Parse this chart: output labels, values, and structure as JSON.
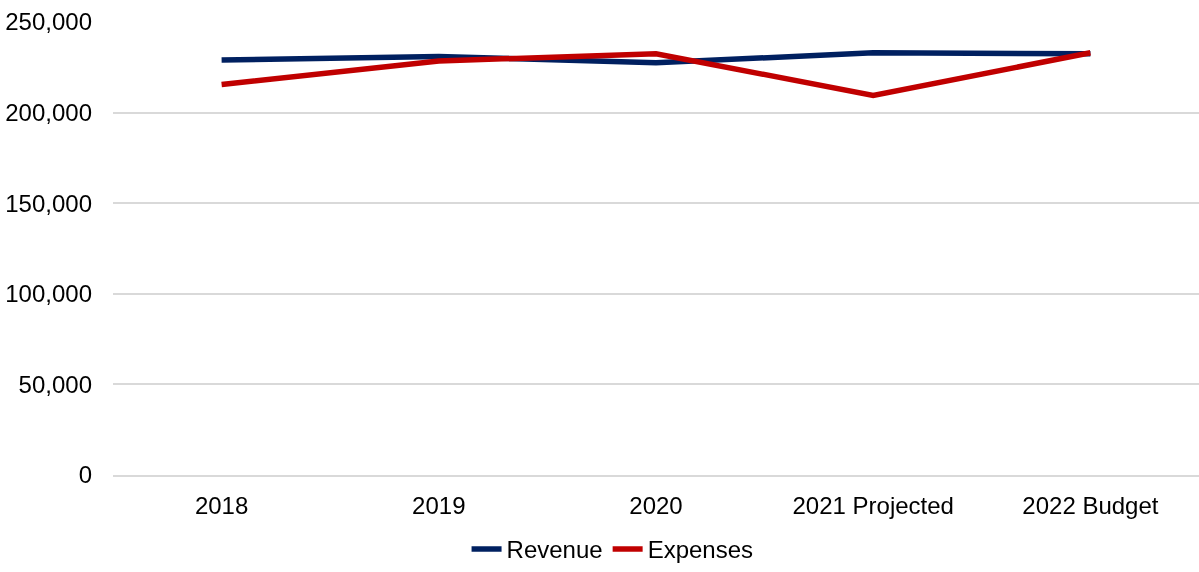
{
  "chart_data": {
    "type": "line",
    "categories": [
      "2018",
      "2019",
      "2020",
      "2021 Projected",
      "2022 Budget"
    ],
    "series": [
      {
        "name": "Revenue",
        "color": "#002060",
        "values": [
          229000,
          231000,
          227500,
          233000,
          232500
        ]
      },
      {
        "name": "Expenses",
        "color": "#c00000",
        "values": [
          215500,
          228500,
          232500,
          209500,
          233000
        ]
      }
    ],
    "ylim": [
      0,
      250000
    ],
    "yticks": [
      {
        "value": 0,
        "label": "0"
      },
      {
        "value": 50000,
        "label": "50,000"
      },
      {
        "value": 100000,
        "label": "100,000"
      },
      {
        "value": 150000,
        "label": "150,000"
      },
      {
        "value": 200000,
        "label": "200,000"
      },
      {
        "value": 250000,
        "label": "250,000"
      }
    ],
    "grid": "y",
    "legend": "bottom"
  }
}
